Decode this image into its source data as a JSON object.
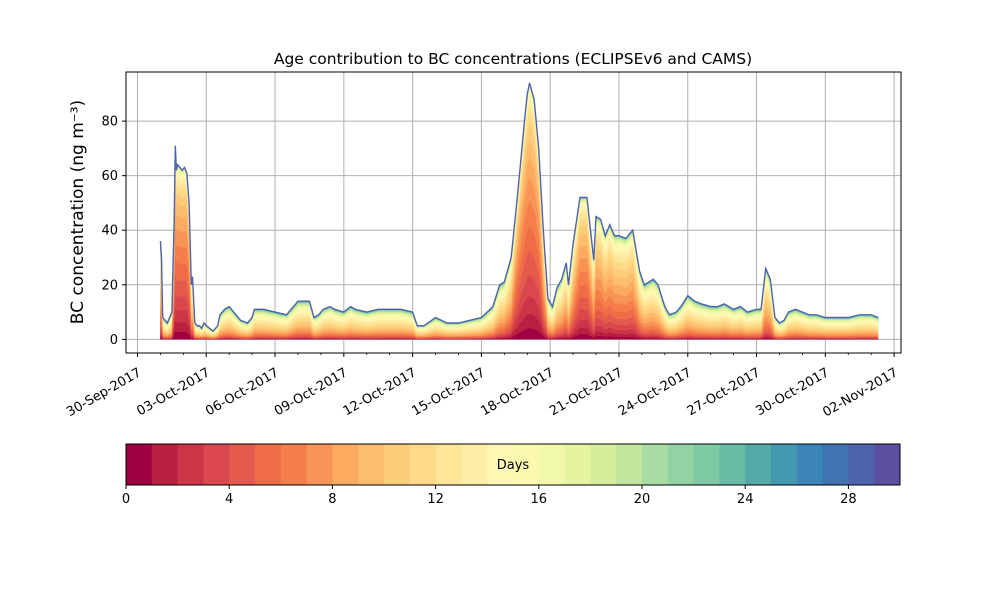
{
  "chart_data": {
    "type": "area",
    "title": "Age contribution to BC concentrations (ECLIPSEv6 and CAMS)",
    "xlabel": "",
    "ylabel": "BC concentration (ng m⁻³)",
    "ylim": [
      -5,
      98
    ],
    "xlim_days": [
      -0.5,
      33.3
    ],
    "grid": true,
    "x_tick_labels": [
      "30-Sep-2017",
      "03-Oct-2017",
      "06-Oct-2017",
      "09-Oct-2017",
      "12-Oct-2017",
      "15-Oct-2017",
      "18-Oct-2017",
      "21-Oct-2017",
      "24-Oct-2017",
      "27-Oct-2017",
      "30-Oct-2017",
      "02-Nov-2017"
    ],
    "x_tick_days": [
      0,
      3,
      6,
      9,
      12,
      15,
      18,
      21,
      24,
      27,
      30,
      33
    ],
    "y_ticks": [
      0,
      20,
      40,
      60,
      80
    ],
    "total_concentration": {
      "x_days": [
        1.0,
        1.05,
        1.1,
        1.3,
        1.5,
        1.6,
        1.65,
        1.7,
        1.75,
        1.85,
        1.95,
        2.05,
        2.15,
        2.25,
        2.35,
        2.4,
        2.5,
        2.6,
        2.7,
        2.8,
        2.9,
        3.0,
        3.3,
        3.5,
        3.6,
        3.8,
        4.0,
        4.5,
        4.8,
        5.0,
        5.1,
        5.5,
        6.0,
        6.5,
        7.0,
        7.5,
        7.7,
        7.9,
        8.1,
        8.4,
        8.6,
        9.0,
        9.3,
        9.5,
        10.0,
        10.5,
        11.0,
        11.5,
        12.0,
        12.2,
        12.5,
        13.0,
        13.5,
        14.0,
        14.5,
        15.0,
        15.5,
        15.8,
        16.0,
        16.3,
        16.6,
        16.9,
        17.0,
        17.1,
        17.3,
        17.5,
        17.7,
        17.9,
        18.1,
        18.3,
        18.5,
        18.7,
        18.8,
        19.0,
        19.3,
        19.6,
        19.9,
        20.0,
        20.2,
        20.4,
        20.6,
        20.8,
        21.0,
        21.3,
        21.6,
        21.9,
        22.1,
        22.3,
        22.5,
        22.7,
        23.0,
        23.2,
        23.5,
        23.7,
        24.0,
        24.3,
        24.6,
        25.0,
        25.3,
        25.6,
        26.0,
        26.3,
        26.6,
        27.0,
        27.2,
        27.4,
        27.6,
        27.8,
        28.0,
        28.2,
        28.4,
        28.7,
        29.0,
        29.3,
        29.6,
        30.0,
        30.5,
        31.0,
        31.5,
        32.0,
        32.3
      ],
      "values": [
        36,
        30,
        8,
        6,
        10,
        44,
        71,
        62,
        64,
        63,
        62,
        63,
        61,
        50,
        20,
        23,
        6,
        5,
        5,
        4,
        6,
        5,
        3,
        5,
        9,
        11,
        12,
        7,
        6,
        8,
        11,
        11,
        10,
        9,
        14,
        14,
        8,
        9,
        11,
        12,
        11,
        10,
        12,
        11,
        10,
        11,
        11,
        11,
        10,
        5,
        5,
        8,
        6,
        6,
        7,
        8,
        12,
        20,
        21,
        30,
        55,
        82,
        90,
        94,
        88,
        70,
        40,
        15,
        12,
        19,
        22,
        28,
        20,
        35,
        52,
        52,
        29,
        45,
        44,
        38,
        42,
        38,
        38,
        37,
        40,
        25,
        20,
        21,
        22,
        20,
        12,
        9,
        10,
        12,
        16,
        14,
        13,
        12,
        12,
        13,
        11,
        12,
        10,
        11,
        11,
        26,
        22,
        8,
        6,
        7,
        10,
        11,
        10,
        9,
        9,
        8,
        8,
        8,
        9,
        9,
        8
      ]
    },
    "age_bins_days": 30,
    "colorbar": {
      "label": "Days",
      "ticks": [
        0,
        4,
        8,
        12,
        16,
        20,
        24,
        28
      ],
      "min": 0,
      "max": 30,
      "colors": [
        "#9e0142",
        "#b8203f",
        "#cc3448",
        "#da474d",
        "#e45a4c",
        "#ee6c46",
        "#f57e4b",
        "#f89455",
        "#fbaa60",
        "#fdbd6e",
        "#fdcc7a",
        "#feda88",
        "#fee597",
        "#feeea5",
        "#fff7b3",
        "#fbf9b0",
        "#f2f9ab",
        "#e5f49f",
        "#d6ee9b",
        "#c1e69e",
        "#a9dca2",
        "#92d3a3",
        "#7dcaa5",
        "#67bca6",
        "#53aaa9",
        "#4399b1",
        "#3b85b8",
        "#4173b2",
        "#4d63ad",
        "#5e4fa2"
      ],
      "_colors_note": "Spectral colormap, 30 bins"
    },
    "age_profile_note": "fraction distribution across age bins depends on phase: peaks are young (red), background is mixed"
  }
}
